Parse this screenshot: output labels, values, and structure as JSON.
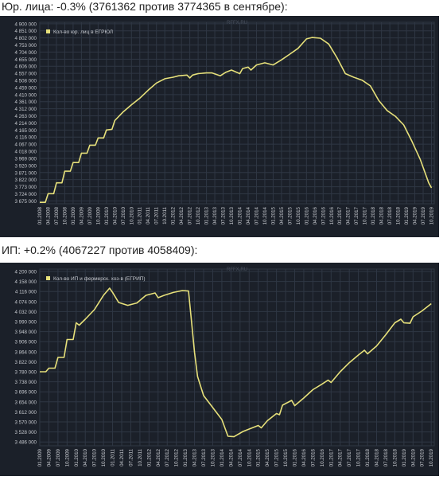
{
  "captions": [
    "Юр. лица: -0.3% (3761362 против 3774365 в сентябре):",
    "ИП: +0.2% (4067227 против 4058409):"
  ],
  "colors": {
    "background": "#1b2029",
    "line": "#e6e07a",
    "grid": "#2f3744",
    "text": "#c6c9cf"
  },
  "chart_data": [
    {
      "type": "line",
      "watermark": "RFFX.RU",
      "series": [
        {
          "name": "Кол-во юр. лиц в ЕГРЮЛ"
        }
      ],
      "yticks": [
        3675000,
        3724000,
        3773000,
        3822000,
        3871000,
        3920000,
        3969000,
        4018000,
        4067000,
        4116000,
        4165000,
        4214000,
        4263000,
        4312000,
        4361000,
        4410000,
        4459000,
        4508000,
        4557000,
        4606000,
        4655000,
        4704000,
        4753000,
        4802000,
        4851000,
        4900000
      ],
      "ytick_labels": [
        "3 675 000",
        "3 724 000",
        "3 773 000",
        "3 822 000",
        "3 871 000",
        "3 920 000",
        "3 969 000",
        "4 018 000",
        "4 067 000",
        "4 116 000",
        "4 165 000",
        "4 214 000",
        "4 263 000",
        "4 312 000",
        "4 361 000",
        "4 410 000",
        "4 459 000",
        "4 508 000",
        "4 557 000",
        "4 606 000",
        "4 655 000",
        "4 704 000",
        "4 753 000",
        "4 802 000",
        "4 851 000",
        "4 900 000"
      ],
      "ylim": [
        3655000,
        4910000
      ],
      "xlabels": [
        "01.2008",
        "04.2008",
        "07.2008",
        "10.2008",
        "01.2009",
        "04.2009",
        "07.2009",
        "10.2009",
        "01.2010",
        "04.2010",
        "07.2010",
        "10.2010",
        "01.2011",
        "04.2011",
        "07.2011",
        "10.2011",
        "01.2012",
        "04.2012",
        "07.2012",
        "10.2012",
        "01.2013",
        "04.2013",
        "07.2013",
        "10.2013",
        "01.2014",
        "04.2014",
        "07.2014",
        "10.2014",
        "01.2015",
        "04.2015",
        "07.2015",
        "10.2015",
        "01.2016",
        "04.2016",
        "07.2016",
        "10.2016",
        "01.2017",
        "04.2017",
        "07.2017",
        "10.2017",
        "01.2018",
        "04.2018",
        "07.2018",
        "10.2018",
        "01.2019",
        "04.2019",
        "07.2019",
        "10.2019"
      ],
      "x_start": "2008-01",
      "values": [
        {
          "x": "2008-01",
          "y": 3665000
        },
        {
          "x": "2008-03",
          "y": 3665000
        },
        {
          "x": "2008-04",
          "y": 3725000
        },
        {
          "x": "2008-06",
          "y": 3725000
        },
        {
          "x": "2008-07",
          "y": 3800000
        },
        {
          "x": "2008-09",
          "y": 3800000
        },
        {
          "x": "2008-10",
          "y": 3880000
        },
        {
          "x": "2008-12",
          "y": 3880000
        },
        {
          "x": "2009-01",
          "y": 3940000
        },
        {
          "x": "2009-03",
          "y": 3940000
        },
        {
          "x": "2009-04",
          "y": 4005000
        },
        {
          "x": "2009-06",
          "y": 4005000
        },
        {
          "x": "2009-07",
          "y": 4060000
        },
        {
          "x": "2009-09",
          "y": 4060000
        },
        {
          "x": "2009-10",
          "y": 4110000
        },
        {
          "x": "2009-12",
          "y": 4110000
        },
        {
          "x": "2010-01",
          "y": 4165000
        },
        {
          "x": "2010-03",
          "y": 4170000
        },
        {
          "x": "2010-04",
          "y": 4230000
        },
        {
          "x": "2010-07",
          "y": 4290000
        },
        {
          "x": "2010-10",
          "y": 4340000
        },
        {
          "x": "2011-01",
          "y": 4385000
        },
        {
          "x": "2011-04",
          "y": 4440000
        },
        {
          "x": "2011-07",
          "y": 4490000
        },
        {
          "x": "2011-10",
          "y": 4520000
        },
        {
          "x": "2012-01",
          "y": 4530000
        },
        {
          "x": "2012-03",
          "y": 4540000
        },
        {
          "x": "2012-06",
          "y": 4545000
        },
        {
          "x": "2012-07",
          "y": 4525000
        },
        {
          "x": "2012-08",
          "y": 4545000
        },
        {
          "x": "2012-10",
          "y": 4555000
        },
        {
          "x": "2013-01",
          "y": 4560000
        },
        {
          "x": "2013-03",
          "y": 4560000
        },
        {
          "x": "2013-06",
          "y": 4540000
        },
        {
          "x": "2013-08",
          "y": 4565000
        },
        {
          "x": "2013-10",
          "y": 4580000
        },
        {
          "x": "2014-01",
          "y": 4555000
        },
        {
          "x": "2014-02",
          "y": 4590000
        },
        {
          "x": "2014-04",
          "y": 4600000
        },
        {
          "x": "2014-05",
          "y": 4580000
        },
        {
          "x": "2014-07",
          "y": 4615000
        },
        {
          "x": "2014-10",
          "y": 4630000
        },
        {
          "x": "2015-01",
          "y": 4615000
        },
        {
          "x": "2015-04",
          "y": 4650000
        },
        {
          "x": "2015-07",
          "y": 4690000
        },
        {
          "x": "2015-10",
          "y": 4730000
        },
        {
          "x": "2016-01",
          "y": 4795000
        },
        {
          "x": "2016-03",
          "y": 4805000
        },
        {
          "x": "2016-06",
          "y": 4800000
        },
        {
          "x": "2016-09",
          "y": 4760000
        },
        {
          "x": "2016-12",
          "y": 4665000
        },
        {
          "x": "2017-03",
          "y": 4555000
        },
        {
          "x": "2017-06",
          "y": 4530000
        },
        {
          "x": "2017-09",
          "y": 4510000
        },
        {
          "x": "2017-12",
          "y": 4470000
        },
        {
          "x": "2018-03",
          "y": 4370000
        },
        {
          "x": "2018-06",
          "y": 4300000
        },
        {
          "x": "2018-09",
          "y": 4260000
        },
        {
          "x": "2018-12",
          "y": 4200000
        },
        {
          "x": "2019-03",
          "y": 4085000
        },
        {
          "x": "2019-06",
          "y": 3960000
        },
        {
          "x": "2019-09",
          "y": 3800000
        },
        {
          "x": "2019-10",
          "y": 3765000
        }
      ]
    },
    {
      "type": "line",
      "watermark": "RFFX.RU",
      "series": [
        {
          "name": "Кол-во ИП и фермерск. хоз-в (ЕГРИП)"
        }
      ],
      "yticks": [
        3486000,
        3528000,
        3570000,
        3612000,
        3654000,
        3696000,
        3738000,
        3780000,
        3822000,
        3864000,
        3906000,
        3948000,
        3990000,
        4032000,
        4074000,
        4116000,
        4158000,
        4200000
      ],
      "ytick_labels": [
        "3 486 000",
        "3 528 000",
        "3 570 000",
        "3 612 000",
        "3 654 000",
        "3 696 000",
        "3 738 000",
        "3 780 000",
        "3 822 000",
        "3 864 000",
        "3 906 000",
        "3 948 000",
        "3 990 000",
        "4 032 000",
        "4 074 000",
        "4 116 000",
        "4 158 000",
        "4 200 000"
      ],
      "ylim": [
        3470000,
        4210000
      ],
      "xlabels": [
        "01.2009",
        "04.2009",
        "07.2009",
        "10.2009",
        "01.2010",
        "04.2010",
        "07.2010",
        "10.2010",
        "01.2011",
        "04.2011",
        "07.2011",
        "10.2011",
        "01.2012",
        "04.2012",
        "07.2012",
        "10.2012",
        "01.2013",
        "04.2013",
        "07.2013",
        "10.2013",
        "01.2014",
        "04.2014",
        "07.2014",
        "10.2014",
        "01.2015",
        "04.2015",
        "07.2015",
        "10.2015",
        "01.2016",
        "04.2016",
        "07.2016",
        "10.2016",
        "01.2017",
        "04.2017",
        "07.2017",
        "10.2017",
        "01.2018",
        "04.2018",
        "07.2018",
        "10.2018",
        "01.2019",
        "04.2019",
        "07.2019",
        "10.2019"
      ],
      "x_start": "2009-01",
      "values": [
        {
          "x": "2009-01",
          "y": 3780000
        },
        {
          "x": "2009-03",
          "y": 3780000
        },
        {
          "x": "2009-04",
          "y": 3795000
        },
        {
          "x": "2009-06",
          "y": 3795000
        },
        {
          "x": "2009-07",
          "y": 3840000
        },
        {
          "x": "2009-09",
          "y": 3840000
        },
        {
          "x": "2009-10",
          "y": 3915000
        },
        {
          "x": "2009-12",
          "y": 3915000
        },
        {
          "x": "2010-01",
          "y": 3985000
        },
        {
          "x": "2010-02",
          "y": 3975000
        },
        {
          "x": "2010-04",
          "y": 4000000
        },
        {
          "x": "2010-07",
          "y": 4040000
        },
        {
          "x": "2010-10",
          "y": 4100000
        },
        {
          "x": "2010-12",
          "y": 4130000
        },
        {
          "x": "2011-01",
          "y": 4112000
        },
        {
          "x": "2011-03",
          "y": 4070000
        },
        {
          "x": "2011-06",
          "y": 4058000
        },
        {
          "x": "2011-09",
          "y": 4068000
        },
        {
          "x": "2011-12",
          "y": 4100000
        },
        {
          "x": "2012-03",
          "y": 4110000
        },
        {
          "x": "2012-04",
          "y": 4090000
        },
        {
          "x": "2012-06",
          "y": 4100000
        },
        {
          "x": "2012-09",
          "y": 4112000
        },
        {
          "x": "2012-12",
          "y": 4120000
        },
        {
          "x": "2013-02",
          "y": 4118000
        },
        {
          "x": "2013-03",
          "y": 3990000
        },
        {
          "x": "2013-04",
          "y": 3860000
        },
        {
          "x": "2013-05",
          "y": 3760000
        },
        {
          "x": "2013-07",
          "y": 3680000
        },
        {
          "x": "2013-10",
          "y": 3630000
        },
        {
          "x": "2014-01",
          "y": 3580000
        },
        {
          "x": "2014-03",
          "y": 3510000
        },
        {
          "x": "2014-05",
          "y": 3508000
        },
        {
          "x": "2014-08",
          "y": 3530000
        },
        {
          "x": "2014-11",
          "y": 3545000
        },
        {
          "x": "2015-01",
          "y": 3555000
        },
        {
          "x": "2015-02",
          "y": 3545000
        },
        {
          "x": "2015-04",
          "y": 3575000
        },
        {
          "x": "2015-07",
          "y": 3605000
        },
        {
          "x": "2015-08",
          "y": 3600000
        },
        {
          "x": "2015-09",
          "y": 3640000
        },
        {
          "x": "2015-12",
          "y": 3660000
        },
        {
          "x": "2016-01",
          "y": 3638000
        },
        {
          "x": "2016-04",
          "y": 3670000
        },
        {
          "x": "2016-07",
          "y": 3705000
        },
        {
          "x": "2016-10",
          "y": 3728000
        },
        {
          "x": "2016-12",
          "y": 3745000
        },
        {
          "x": "2017-01",
          "y": 3735000
        },
        {
          "x": "2017-04",
          "y": 3780000
        },
        {
          "x": "2017-07",
          "y": 3818000
        },
        {
          "x": "2017-10",
          "y": 3850000
        },
        {
          "x": "2017-12",
          "y": 3870000
        },
        {
          "x": "2018-01",
          "y": 3855000
        },
        {
          "x": "2018-04",
          "y": 3888000
        },
        {
          "x": "2018-07",
          "y": 3935000
        },
        {
          "x": "2018-10",
          "y": 3985000
        },
        {
          "x": "2018-12",
          "y": 4000000
        },
        {
          "x": "2019-01",
          "y": 3985000
        },
        {
          "x": "2019-03",
          "y": 3983000
        },
        {
          "x": "2019-04",
          "y": 4010000
        },
        {
          "x": "2019-07",
          "y": 4035000
        },
        {
          "x": "2019-10",
          "y": 4065000
        }
      ]
    }
  ]
}
